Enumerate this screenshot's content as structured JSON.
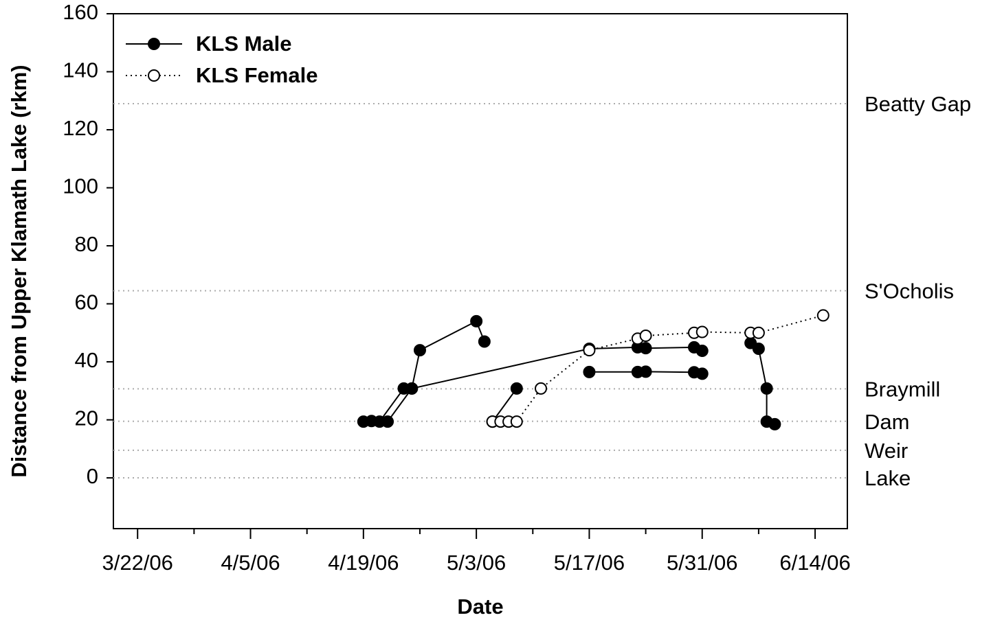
{
  "chart_data": {
    "type": "line",
    "xlabel": "Date",
    "ylabel": "Distance from Upper Klamath Lake (rkm)",
    "xlim": [
      "3/19/06",
      "6/18/06"
    ],
    "xticks": [
      "3/22/06",
      "4/5/06",
      "4/19/06",
      "5/3/06",
      "5/17/06",
      "5/31/06",
      "6/14/06"
    ],
    "ylim": [
      -17.5,
      160
    ],
    "yticks": [
      0,
      20,
      40,
      60,
      80,
      100,
      120,
      140,
      160
    ],
    "legend": "upper left",
    "reference_lines": [
      {
        "label": "Beatty Gap",
        "value": 129
      },
      {
        "label": "S'Ocholis",
        "value": 64.5
      },
      {
        "label": "Braymill",
        "value": 30.7
      },
      {
        "label": "Dam",
        "value": 19.5
      },
      {
        "label": "Weir",
        "value": 9.5
      },
      {
        "label": "Lake",
        "value": 0
      }
    ],
    "series": [
      {
        "name": "KLS Male",
        "color": "#000000",
        "marker": "filled",
        "line": "solid",
        "x": [
          "4/19/06",
          "4/20/06",
          "4/21/06",
          "4/24/06",
          "4/25/06",
          "4/26/06",
          "5/3/06",
          "5/4/06",
          null,
          "4/22/06",
          "4/25/06",
          "5/17/06",
          "5/23/06",
          "5/24/06",
          "5/30/06",
          "5/31/06",
          null,
          "5/5/06",
          "5/8/06",
          null,
          "5/17/06",
          "5/23/06",
          "5/24/06",
          "5/30/06",
          "5/31/06",
          null,
          "6/6/06",
          "6/7/06",
          "6/8/06",
          "6/8/06",
          "6/9/06"
        ],
        "values": [
          19.4,
          19.6,
          19.4,
          30.8,
          30.8,
          44,
          54,
          47,
          null,
          19.4,
          30.8,
          44.5,
          45,
          44.7,
          45,
          43.8,
          null,
          19.4,
          30.8,
          null,
          36.5,
          36.5,
          36.6,
          36.4,
          35.9,
          null,
          46.5,
          44.5,
          30.8,
          19.4,
          18.5
        ]
      },
      {
        "name": "KLS Female",
        "color": "#000000",
        "marker": "open",
        "line": "dotted",
        "x": [
          "5/5/06",
          "5/6/06",
          "5/7/06",
          "5/8/06",
          "5/11/06",
          "5/17/06",
          "5/23/06",
          "5/24/06",
          "5/30/06",
          "5/31/06",
          "6/6/06",
          "6/7/06",
          "6/15/06"
        ],
        "values": [
          19.4,
          19.4,
          19.4,
          19.4,
          30.8,
          44,
          48,
          49,
          50,
          50.3,
          50,
          50,
          56
        ]
      }
    ]
  }
}
